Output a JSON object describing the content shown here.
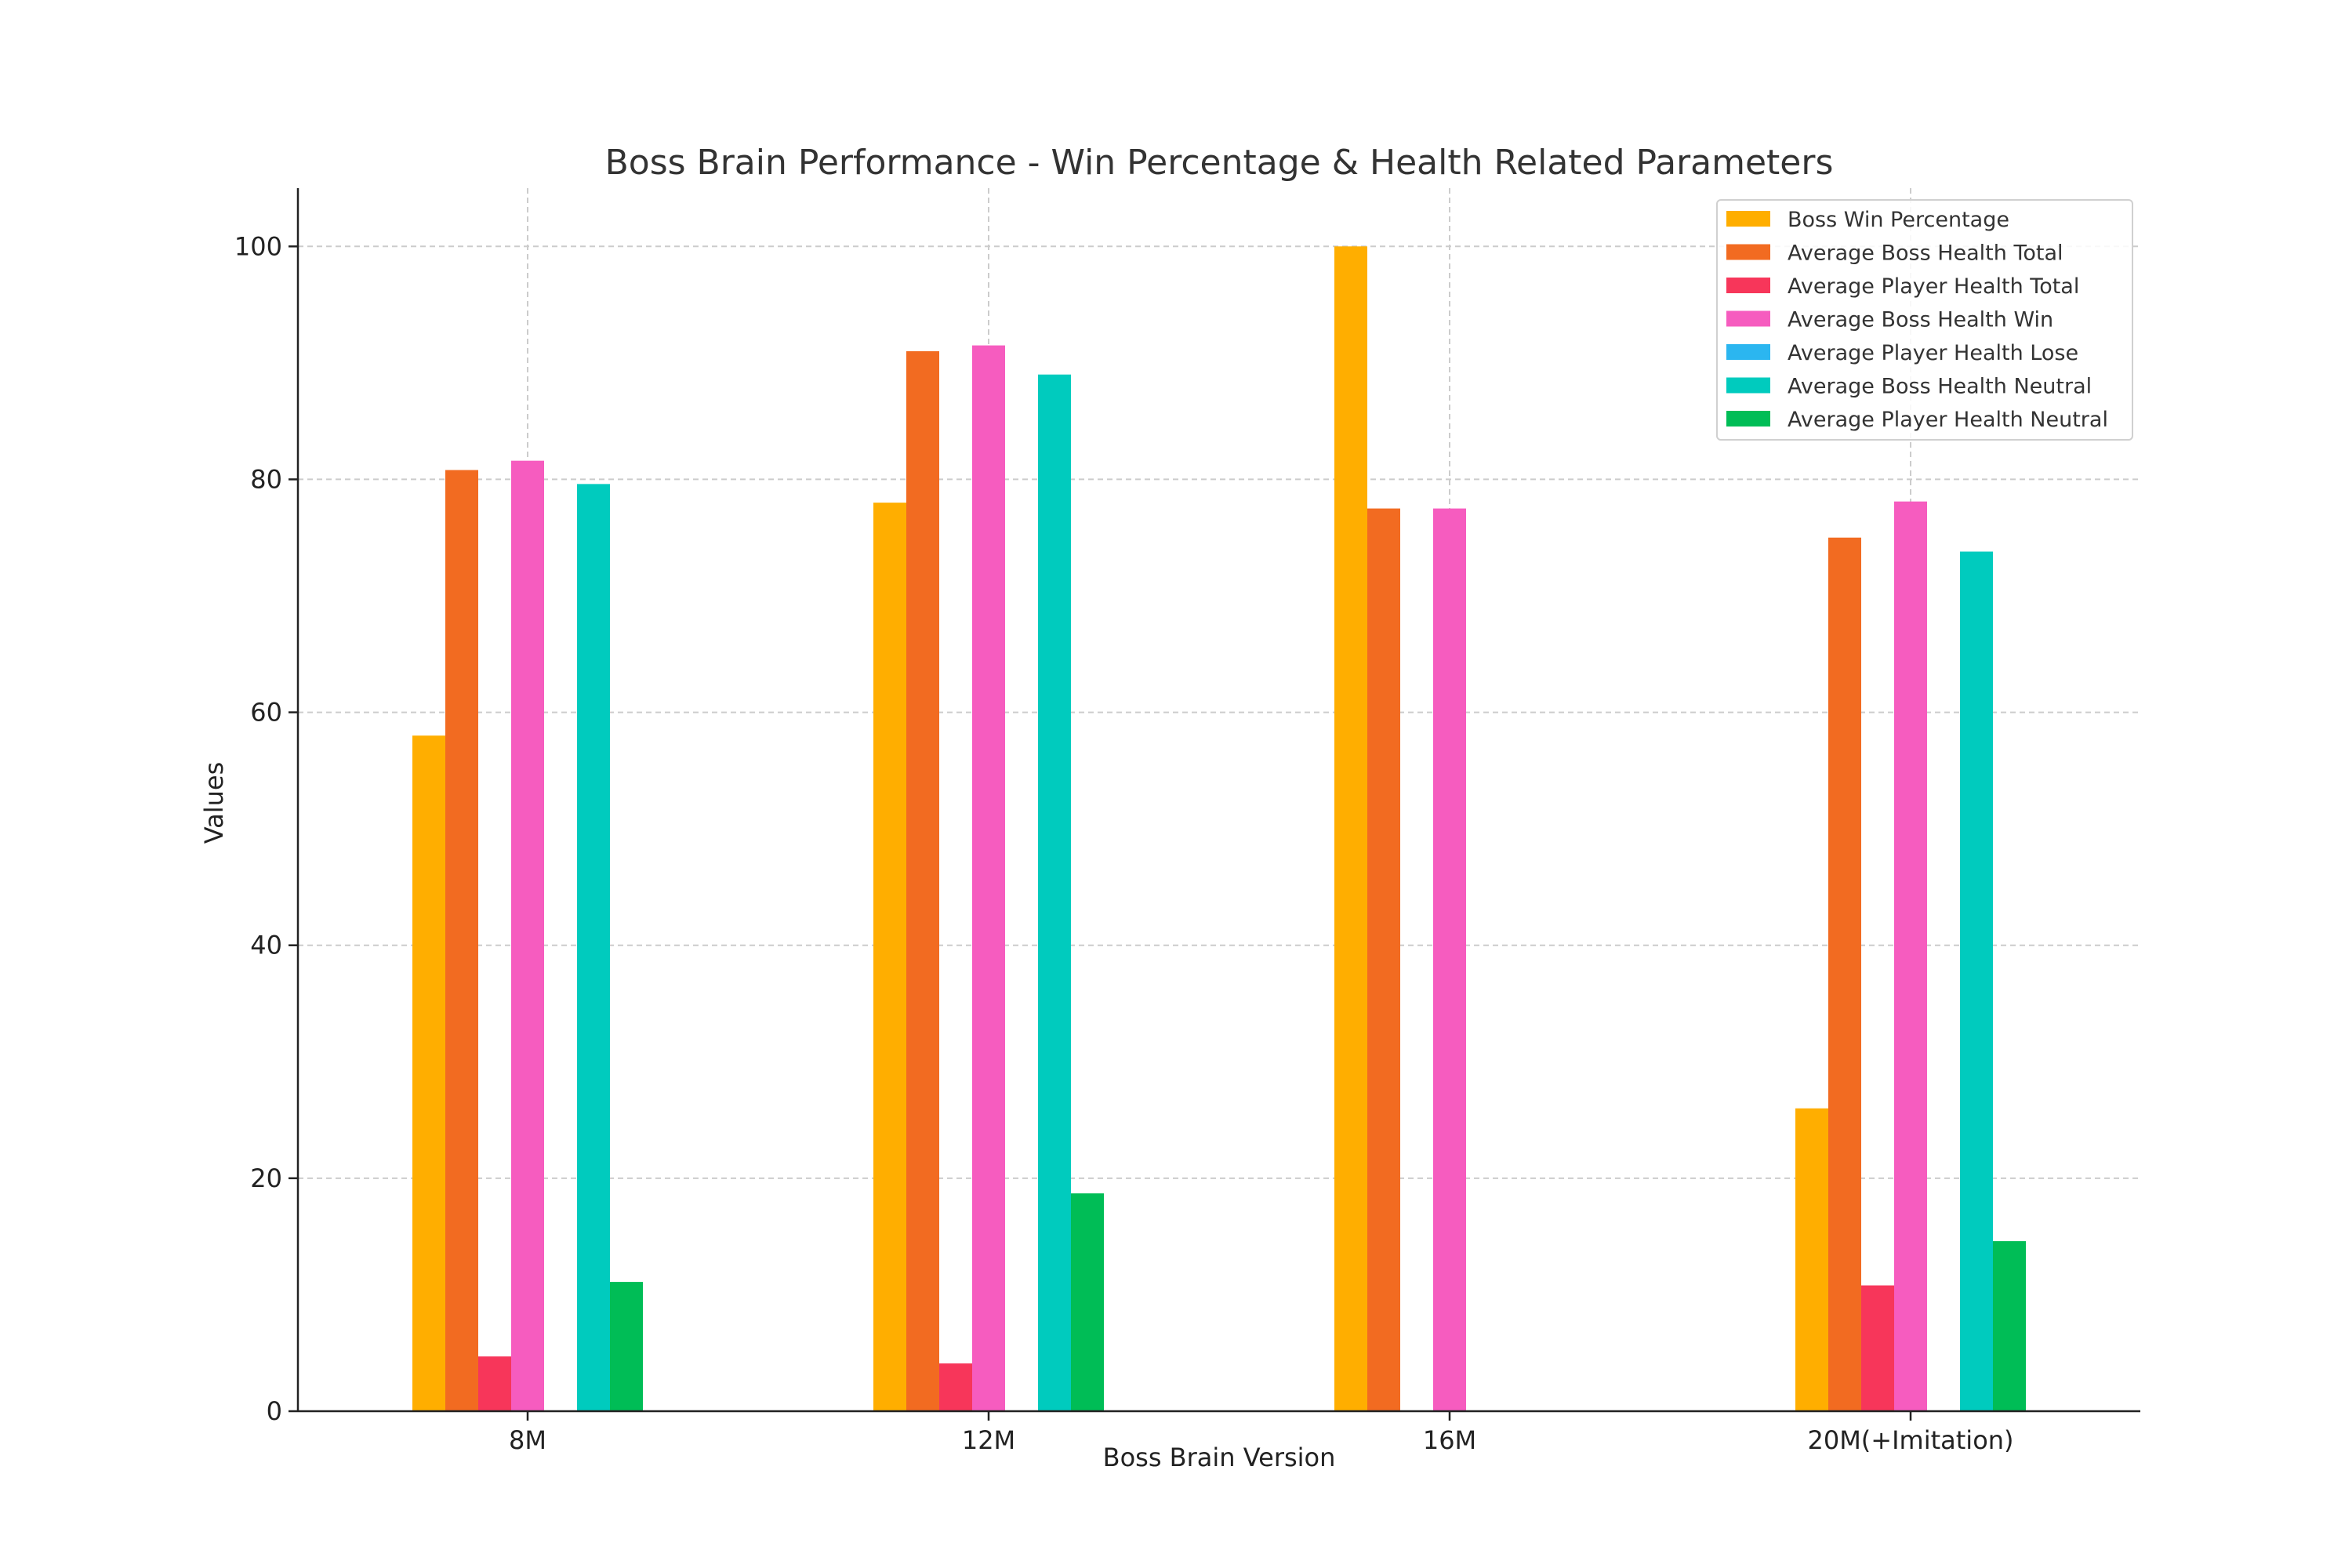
{
  "chart_data": {
    "type": "bar",
    "title": "Boss Brain Performance - Win Percentage & Health Related Parameters",
    "xlabel": "Boss Brain Version",
    "ylabel": "Values",
    "categories": [
      "8M",
      "12M",
      "16M",
      "20M(+Imitation)"
    ],
    "ylim": [
      0,
      105
    ],
    "yticks": [
      0,
      20,
      40,
      60,
      80,
      100
    ],
    "grid": true,
    "legend_position": "top-right",
    "series": [
      {
        "name": "Boss Win Percentage",
        "color": "#FFAE00",
        "values": [
          58,
          78,
          100,
          26
        ]
      },
      {
        "name": "Average Boss Health Total",
        "color": "#F26B21",
        "values": [
          80.8,
          91,
          77.5,
          75
        ]
      },
      {
        "name": "Average Player Health Total",
        "color": "#F7365A",
        "values": [
          4.7,
          4.1,
          0,
          10.8
        ]
      },
      {
        "name": "Average Boss Health Win",
        "color": "#F65CBF",
        "values": [
          81.6,
          91.5,
          77.5,
          78.1
        ]
      },
      {
        "name": "Average Player Health Lose",
        "color": "#2BB6F0",
        "values": [
          0,
          0,
          0,
          0
        ]
      },
      {
        "name": "Average Boss Health Neutral",
        "color": "#00CBBE",
        "values": [
          79.6,
          89,
          0,
          73.8
        ]
      },
      {
        "name": "Average Player Health Neutral",
        "color": "#00BD56",
        "values": [
          11.1,
          18.7,
          0,
          14.6
        ]
      }
    ]
  }
}
